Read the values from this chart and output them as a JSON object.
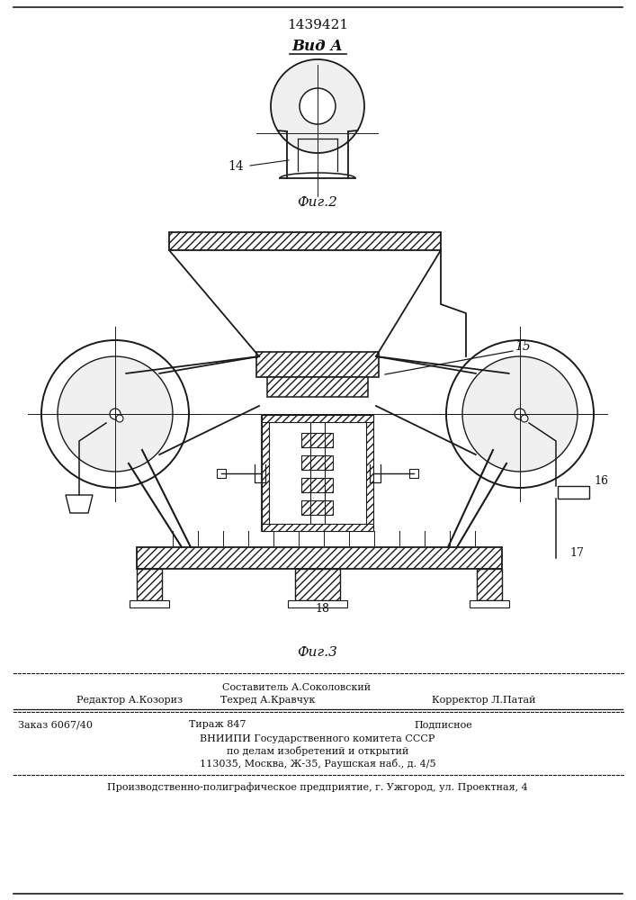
{
  "patent_number": "1439421",
  "view_label": "Вид А",
  "fig2_label": "Фиг.2",
  "fig3_label": "Фиг.3",
  "label_14": "14",
  "label_15": "15",
  "label_16": "16",
  "label_17": "17",
  "label_18": "18",
  "footer_line1_center_top": "Составитель А.Соколовский",
  "footer_line1_left": "Редактор А.Козориз",
  "footer_line1_center": "Техред А.Кравчук",
  "footer_line1_right": "Корректор Л.Патай",
  "footer_line2_left": "Заказ 6067/40",
  "footer_line2_center": "Тираж 847",
  "footer_line2_right": "Подписное",
  "footer_line3": "ВНИИПИ Государственного комитета СССР",
  "footer_line4": "по делам изобретений и открытий",
  "footer_line5": "113035, Москва, Ж-35, Раушская наб., д. 4/5",
  "footer_line6": "Производственно-полиграфическое предприятие, г. Ужгород, ул. Проектная, 4",
  "bg_color": "#ffffff",
  "line_color": "#1a1a1a",
  "hatch_color": "#333333",
  "text_color": "#111111"
}
